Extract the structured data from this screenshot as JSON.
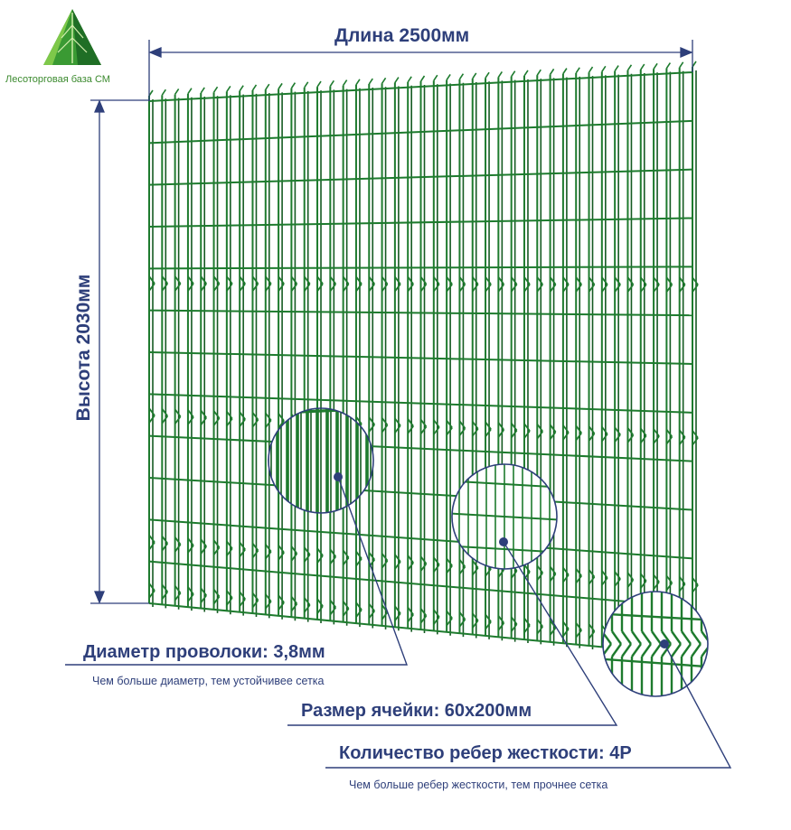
{
  "logo": {
    "name": "Лесоторговая база СМ",
    "icon": "green-pyramid-logo-icon",
    "color": "#2e8b2f"
  },
  "dimensions": {
    "length_label": "Длина 2500мм",
    "height_label": "Высота 2030мм"
  },
  "specs": {
    "wire_diameter_label": "Диаметр проволоки: 3,8мм",
    "wire_diameter_note": "Чем больше диаметр, тем устойчивее сетка",
    "cell_size_label": "Размер ячейки: 60х200мм",
    "ribs_label": "Количество ребер жесткости: 4Р",
    "ribs_note": "Чем больше ребер жесткости, тем прочнее сетка"
  },
  "colors": {
    "panel": "#1e7b2e",
    "panel_dark": "#155a22",
    "annotation": "#2e3f7a"
  },
  "panel": {
    "vertical_wires": 43,
    "horizontal_wires": 13,
    "stiffening_ribs": 4
  }
}
